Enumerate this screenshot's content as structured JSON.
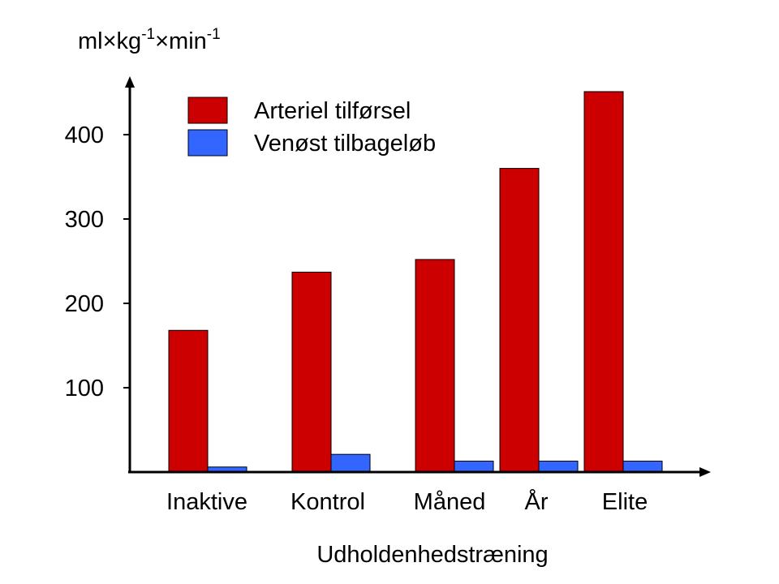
{
  "chart_data": {
    "type": "bar",
    "ylabel": {
      "base": "ml",
      "times1": "×",
      "kg": "kg",
      "kg_exp": "-1",
      "times2": "×",
      "min": "min",
      "min_exp": "-1"
    },
    "xlabel": "Udholdenhedstræning",
    "categories": [
      "Inaktive",
      "Kontrol",
      "Måned",
      "År",
      "Elite"
    ],
    "series": [
      {
        "name": "Arteriel tilførsel",
        "color": "#cc0000",
        "values": [
          168,
          237,
          252,
          360,
          451
        ]
      },
      {
        "name": "Venøst tilbageløb",
        "color": "#3366ff",
        "values": [
          6,
          21,
          13,
          13,
          13
        ]
      }
    ],
    "yticks": [
      100,
      200,
      300,
      400
    ],
    "ylim": [
      0,
      460
    ],
    "grid": false,
    "legend": "top-left"
  }
}
